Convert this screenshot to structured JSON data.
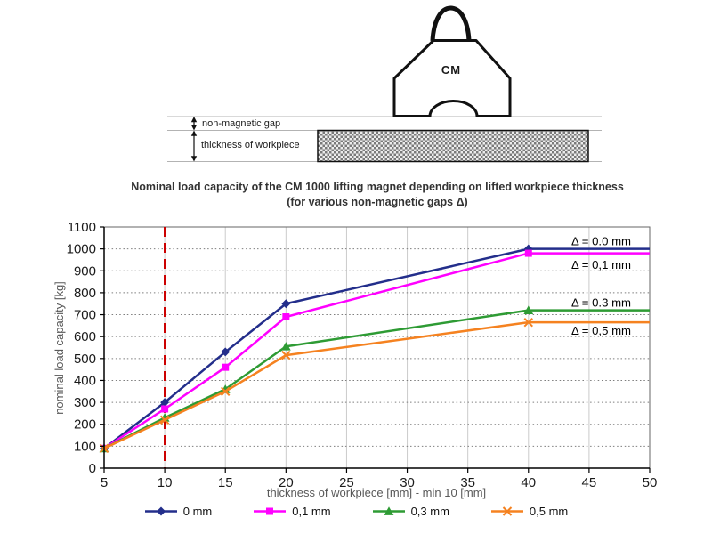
{
  "diagram": {
    "magnet_label": "CM",
    "gap_label": "non-magnetic gap",
    "thickness_label": "thickness of workpiece"
  },
  "chart_data": {
    "type": "line",
    "title": "Nominal load capacity of the CM 1000 lifting magnet depending on lifted workpiece thickness",
    "subtitle": "(for various non-magnetic gaps Δ)",
    "xlabel": "thickness of workpiece [mm] - min 10 [mm]",
    "ylabel": "nominal load capacity [kg]",
    "xlim": [
      5,
      50
    ],
    "ylim": [
      0,
      1100
    ],
    "x_ticks": [
      5,
      10,
      15,
      20,
      25,
      30,
      35,
      40,
      45,
      50
    ],
    "y_ticks": [
      0,
      100,
      200,
      300,
      400,
      500,
      600,
      700,
      800,
      900,
      1000,
      1100
    ],
    "grid": true,
    "x": [
      5,
      10,
      15,
      20,
      40,
      50
    ],
    "series": [
      {
        "name": "0 mm",
        "color": "#232E8B",
        "marker": "diamond",
        "values": [
          90,
          300,
          530,
          750,
          1000,
          1000
        ]
      },
      {
        "name": "0,1 mm",
        "color": "#FF00FF",
        "marker": "square",
        "values": [
          90,
          270,
          460,
          690,
          980,
          980
        ]
      },
      {
        "name": "0,3 mm",
        "color": "#2E9B34",
        "marker": "triangle",
        "values": [
          90,
          230,
          360,
          555,
          720,
          720
        ]
      },
      {
        "name": "0,5 mm",
        "color": "#F58220",
        "marker": "x",
        "values": [
          90,
          220,
          350,
          515,
          665,
          665
        ]
      }
    ],
    "reference_line": {
      "x": 10,
      "color": "#CC0000",
      "style": "dashed"
    },
    "annotations": [
      {
        "text": "Δ = 0.0 mm",
        "x": 46,
        "y": 1035
      },
      {
        "text": "Δ = 0,1 mm",
        "x": 46,
        "y": 928
      },
      {
        "text": "Δ = 0.3 mm",
        "x": 46,
        "y": 755
      },
      {
        "text": "Δ = 0,5 mm",
        "x": 46,
        "y": 628
      }
    ],
    "legend_position": "bottom"
  }
}
